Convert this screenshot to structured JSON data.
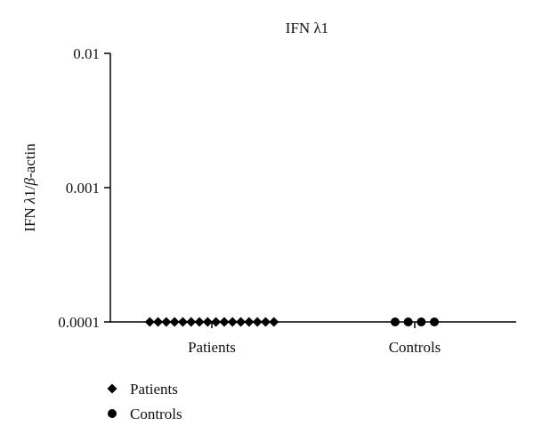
{
  "chart_data": {
    "type": "scatter",
    "title": "IFN λ1",
    "ylabel_parts": [
      "IFN ",
      "λ",
      "1/",
      "β",
      "-actin"
    ],
    "y_scale": "log",
    "ylim": [
      0.0001,
      0.01
    ],
    "y_ticks": [
      {
        "value": 0.0001,
        "label": "0.0001"
      },
      {
        "value": 0.001,
        "label": "0.001"
      },
      {
        "value": 0.01,
        "label": "0.01"
      }
    ],
    "categories": [
      "Patients",
      "Controls"
    ],
    "series": [
      {
        "name": "Patients",
        "category": "Patients",
        "marker": "diamond",
        "values": [
          0.0001,
          0.0001,
          0.0001,
          0.0001,
          0.0001,
          0.0001,
          0.0001,
          0.0001,
          0.0001,
          0.0001,
          0.0001,
          0.0001,
          0.0001,
          0.0001,
          0.0001,
          0.0001
        ]
      },
      {
        "name": "Controls",
        "category": "Controls",
        "marker": "circle",
        "values": [
          0.0001,
          0.0001,
          0.0001,
          0.0001
        ]
      }
    ],
    "legend_position": "bottom-left",
    "grid": false
  }
}
